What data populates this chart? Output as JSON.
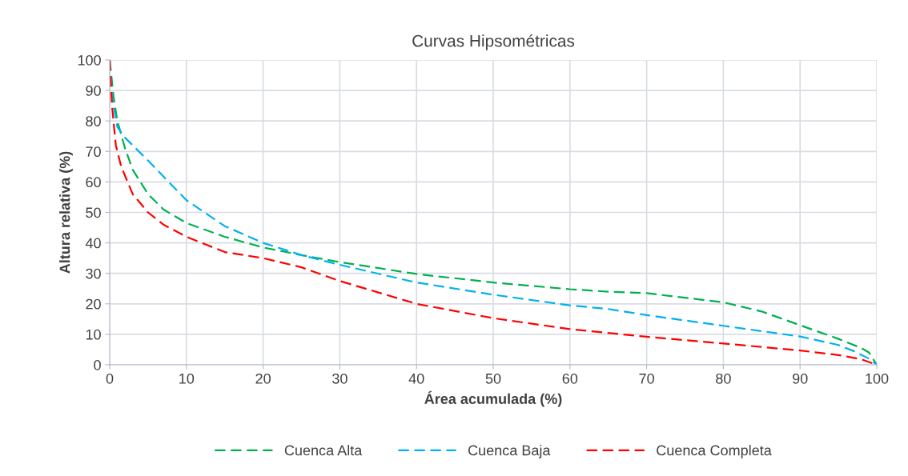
{
  "chart_data": {
    "type": "line",
    "title": "Curvas Hipsométricas",
    "xlabel": "Área acumulada (%)",
    "ylabel": "Altura relativa (%)",
    "xlim": [
      0,
      100
    ],
    "xticks": [
      0,
      10,
      20,
      30,
      40,
      50,
      60,
      70,
      80,
      90,
      100
    ],
    "ylim": [
      0,
      100
    ],
    "yticks": [
      0,
      10,
      20,
      30,
      40,
      50,
      60,
      70,
      80,
      90,
      100
    ],
    "grid": true,
    "legend": "bottom",
    "line_style": "dashed",
    "marker": "none",
    "series": [
      {
        "name": "Cuenca Alta",
        "color": "#00b050",
        "x": [
          0,
          0.5,
          1,
          2,
          3,
          5,
          7,
          10,
          15,
          20,
          25,
          30,
          40,
          50,
          60,
          65,
          70,
          75,
          80,
          85,
          90,
          95,
          98,
          99,
          100
        ],
        "values": [
          100,
          88,
          80,
          71,
          64,
          56,
          51,
          46.5,
          42,
          38.5,
          36,
          33.7,
          29.8,
          27,
          24.8,
          24,
          23.5,
          22,
          20.5,
          17.5,
          13,
          8.5,
          5.5,
          4,
          0
        ]
      },
      {
        "name": "Cuenca Baja",
        "color": "#00b0f0",
        "x": [
          0,
          0.3,
          1,
          2,
          5,
          10,
          15,
          20,
          25,
          30,
          40,
          50,
          60,
          65,
          70,
          80,
          90,
          95,
          97,
          99,
          100
        ],
        "values": [
          100,
          88,
          78,
          74.5,
          67,
          54,
          45.5,
          40,
          36,
          32.8,
          27,
          23,
          19.5,
          18.3,
          16.3,
          12.8,
          9.3,
          6.5,
          4.5,
          2,
          0
        ]
      },
      {
        "name": "Cuenca Completa",
        "color": "#ff0000",
        "x": [
          0,
          0.3,
          0.8,
          1.5,
          3,
          5,
          7,
          10,
          15,
          20,
          25,
          30,
          40,
          50,
          60,
          70,
          80,
          90,
          95,
          98,
          100
        ],
        "values": [
          100,
          85,
          72,
          65,
          56,
          50,
          46,
          42,
          37,
          35,
          32,
          27.5,
          20,
          15.3,
          11.7,
          9.2,
          7,
          4.7,
          3.2,
          1.8,
          0
        ]
      }
    ]
  }
}
